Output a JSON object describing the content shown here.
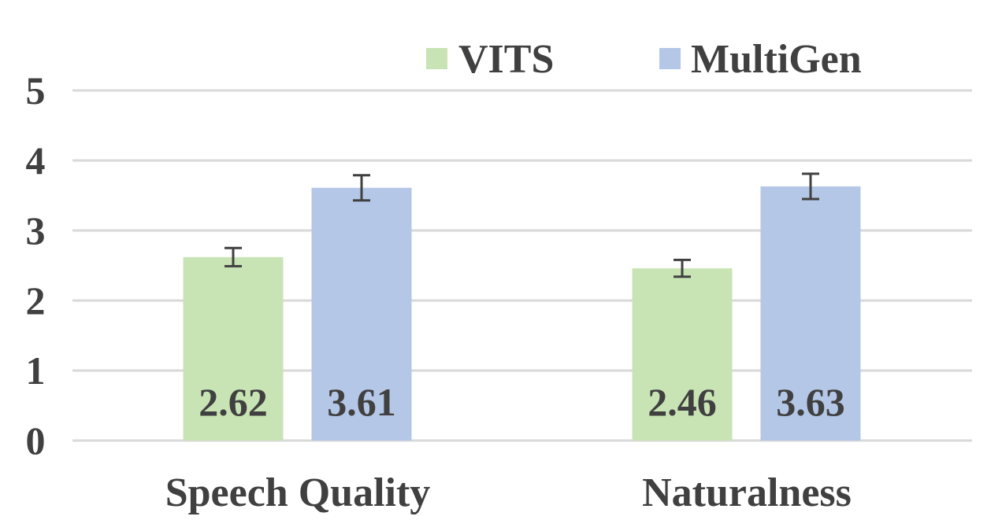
{
  "chart_data": {
    "type": "bar",
    "categories": [
      "Speech Quality",
      "Naturalness"
    ],
    "series": [
      {
        "name": "VITS",
        "values": [
          2.62,
          2.46
        ],
        "error": [
          0.13,
          0.12
        ],
        "color": "#c9e4b4"
      },
      {
        "name": "MultiGen",
        "values": [
          3.61,
          3.63
        ],
        "error": [
          0.18,
          0.18
        ],
        "color": "#b4c7e7"
      }
    ],
    "value_labels": [
      [
        "2.62",
        "2.46"
      ],
      [
        "3.61",
        "3.63"
      ]
    ],
    "yticks": [
      "0",
      "1",
      "2",
      "3",
      "4",
      "5"
    ],
    "ylim": [
      0,
      5
    ],
    "title": "",
    "xlabel": "",
    "ylabel": "",
    "grid": true,
    "legend_position": "top"
  }
}
